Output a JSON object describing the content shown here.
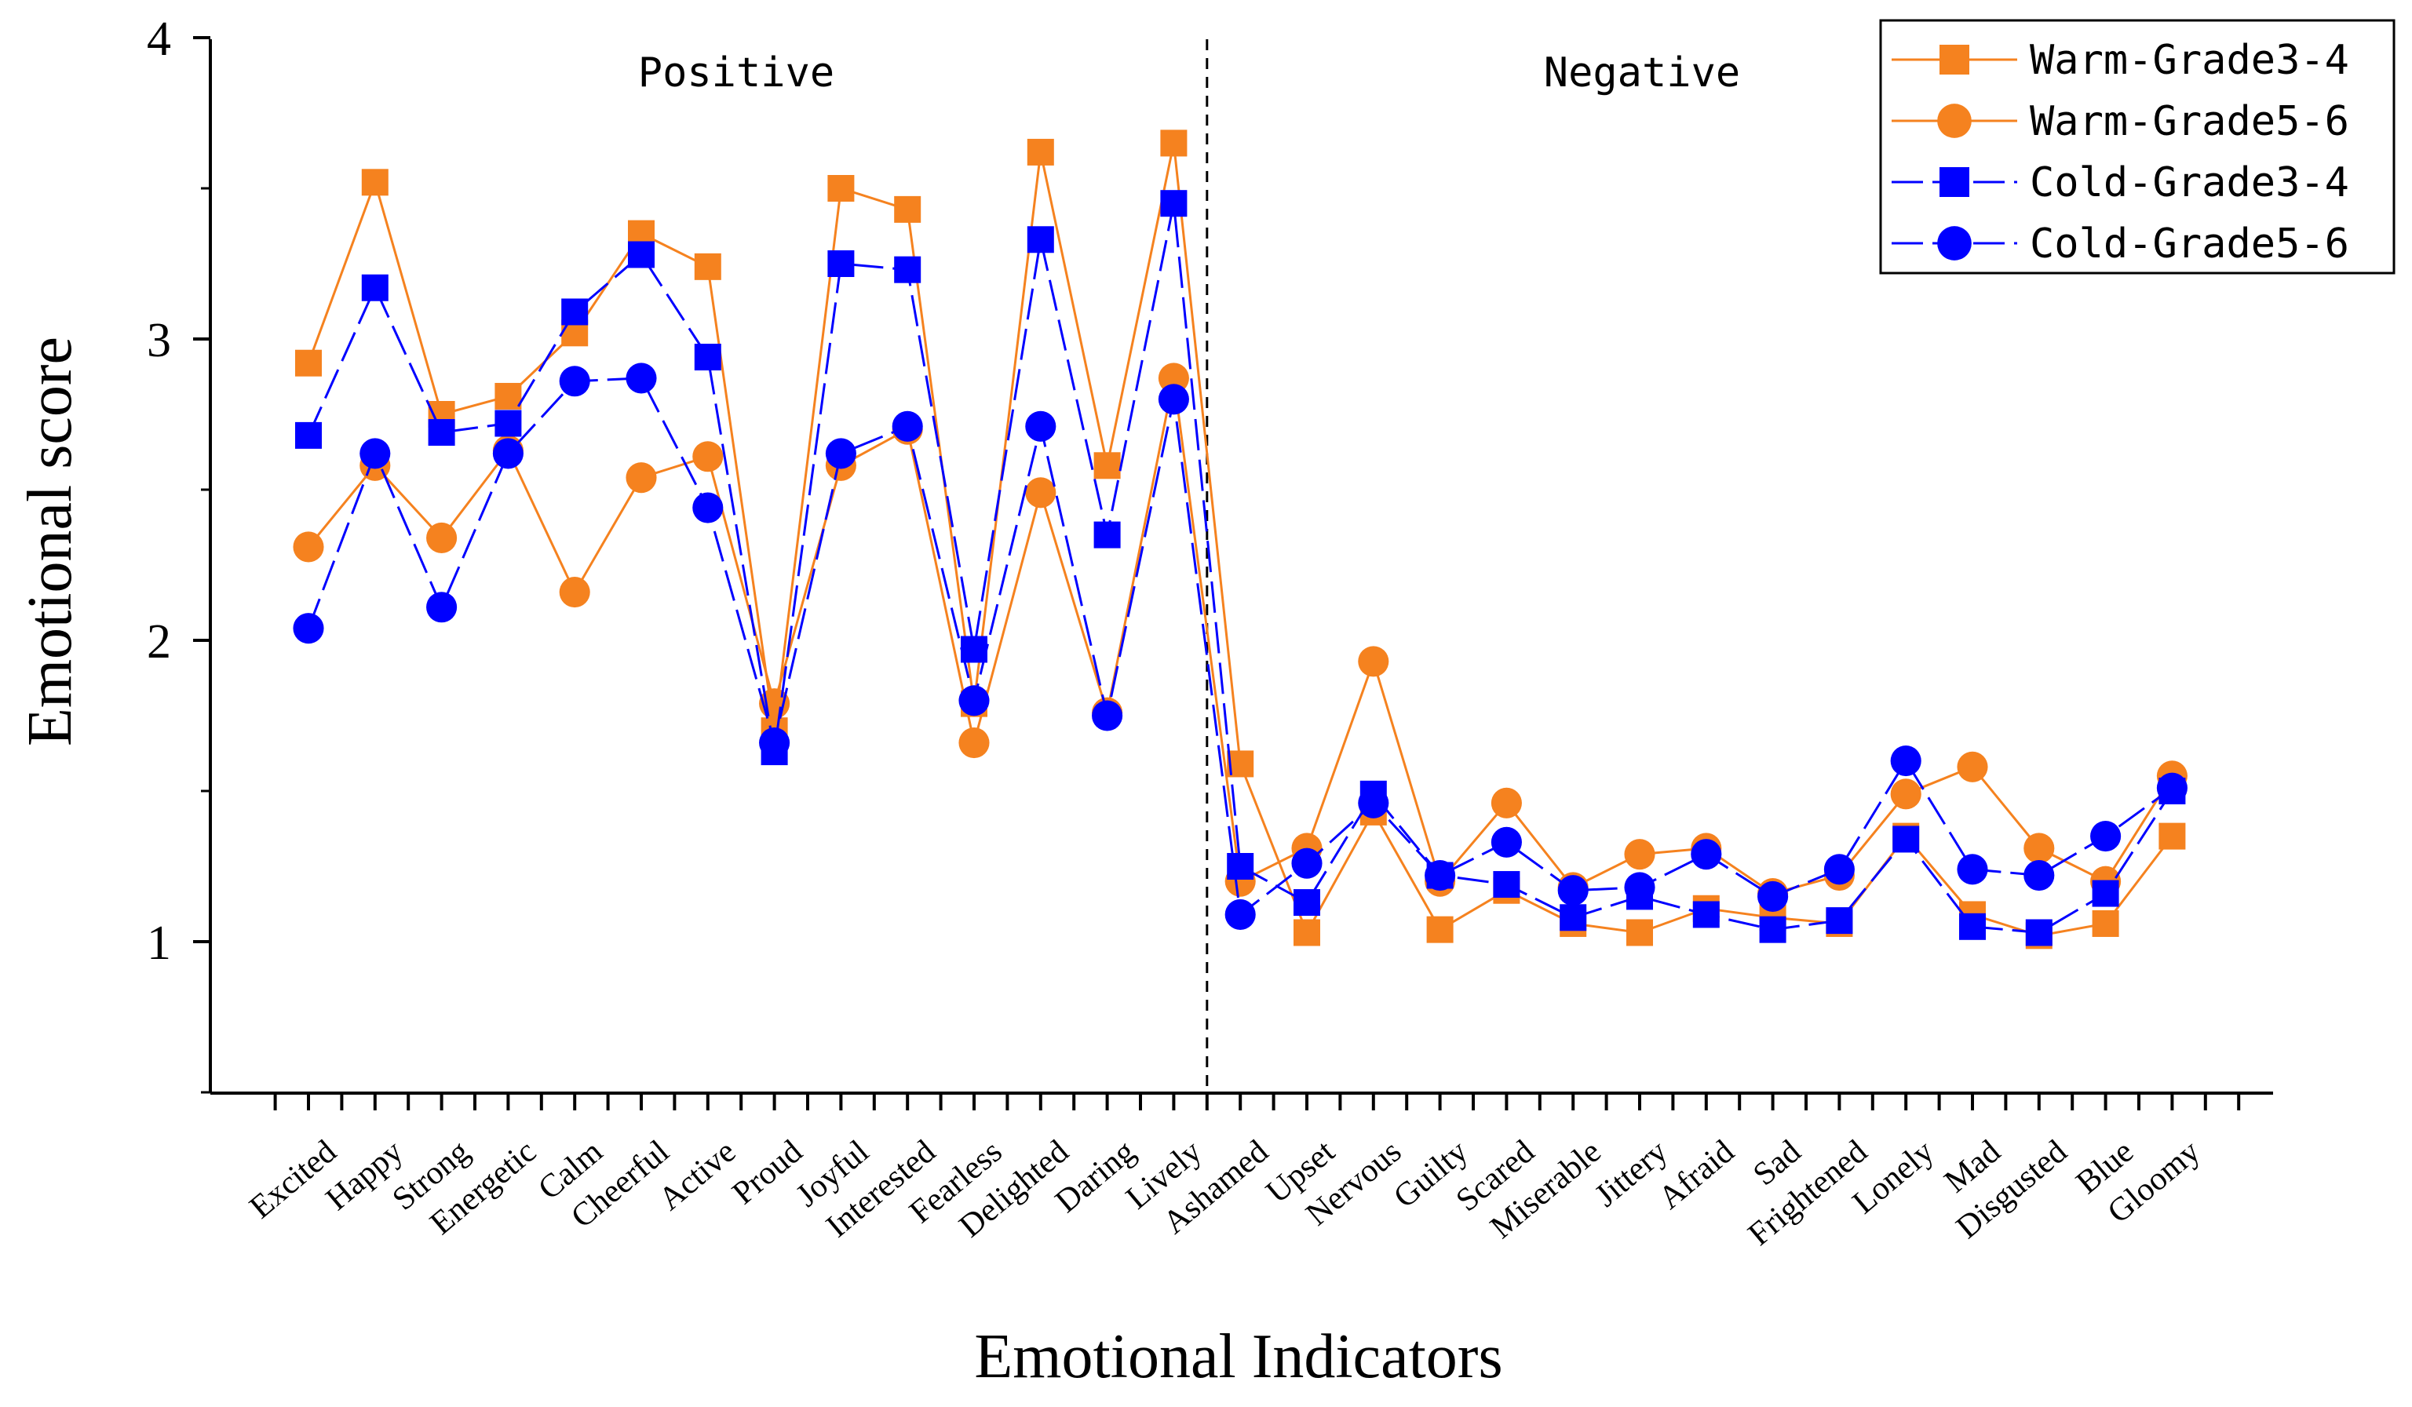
{
  "chart_data": {
    "type": "line",
    "xlabel": "Emotional Indicators",
    "ylabel": "Emotional score",
    "ylim": [
      0.5,
      4
    ],
    "yticks": [
      1,
      2,
      3,
      4
    ],
    "grid": false,
    "legend_position": "top-right",
    "divider_after_category": "Lively",
    "regions": [
      "Positive",
      "Negative"
    ],
    "categories": [
      "Excited",
      "Happy",
      "Strong",
      "Energetic",
      "Calm",
      "Cheerful",
      "Active",
      "Proud",
      "Joyful",
      "Interested",
      "Fearless",
      "Delighted",
      "Daring",
      "Lively",
      "Ashamed",
      "Upset",
      "Nervous",
      "Guilty",
      "Scared",
      "Miserable",
      "Jittery",
      "Afraid",
      "Sad",
      "Frightened",
      "Lonely",
      "Mad",
      "Disgusted",
      "Blue",
      "Gloomy"
    ],
    "series": [
      {
        "name": "Warm-Grade3-4",
        "color": "#F5821F",
        "marker": "square",
        "dash": "solid",
        "values": [
          2.92,
          3.52,
          2.75,
          2.81,
          3.02,
          3.35,
          3.24,
          1.7,
          3.5,
          3.43,
          1.79,
          3.62,
          2.58,
          3.65,
          1.59,
          1.03,
          1.43,
          1.04,
          1.17,
          1.06,
          1.03,
          1.11,
          1.08,
          1.06,
          1.35,
          1.09,
          1.02,
          1.06,
          1.35
        ]
      },
      {
        "name": "Warm-Grade5-6",
        "color": "#F5821F",
        "marker": "circle",
        "dash": "solid",
        "values": [
          2.31,
          2.58,
          2.34,
          2.63,
          2.16,
          2.54,
          2.61,
          1.79,
          2.58,
          2.7,
          1.66,
          2.49,
          1.76,
          2.87,
          1.2,
          1.31,
          1.93,
          1.2,
          1.46,
          1.18,
          1.29,
          1.31,
          1.16,
          1.22,
          1.49,
          1.58,
          1.31,
          1.2,
          1.55
        ]
      },
      {
        "name": "Cold-Grade3-4",
        "color": "#0000FF",
        "marker": "square",
        "dash": "dashed",
        "values": [
          2.68,
          3.17,
          2.69,
          2.72,
          3.09,
          3.28,
          2.94,
          1.63,
          3.25,
          3.23,
          1.97,
          3.33,
          2.35,
          3.45,
          1.25,
          1.13,
          1.49,
          1.22,
          1.19,
          1.08,
          1.15,
          1.09,
          1.04,
          1.07,
          1.34,
          1.05,
          1.03,
          1.16,
          1.5
        ]
      },
      {
        "name": "Cold-Grade5-6",
        "color": "#0000FF",
        "marker": "circle",
        "dash": "dashed",
        "values": [
          2.04,
          2.62,
          2.11,
          2.62,
          2.86,
          2.87,
          2.44,
          1.66,
          2.62,
          2.71,
          1.8,
          2.71,
          1.75,
          2.8,
          1.09,
          1.26,
          1.46,
          1.22,
          1.33,
          1.17,
          1.18,
          1.29,
          1.15,
          1.24,
          1.6,
          1.24,
          1.22,
          1.35,
          1.51
        ]
      }
    ]
  }
}
